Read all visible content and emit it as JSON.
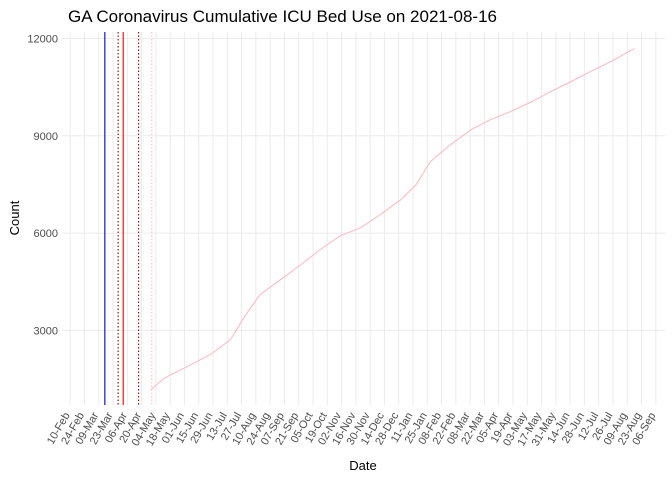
{
  "chart_data": {
    "type": "line",
    "title": "GA Coronavirus Cumulative ICU Bed Use on 2021-08-16",
    "x_label": "Date",
    "y_label": "Count",
    "series": [
      {
        "name": "ICU",
        "color": "#ffb6c1",
        "x": [
          79,
          93,
          118,
          137,
          157,
          172,
          186,
          206,
          226,
          245,
          265,
          285,
          304,
          324,
          339,
          353,
          373,
          393,
          412,
          432,
          451,
          471,
          491,
          510,
          530,
          553
        ],
        "values": [
          1170,
          1540,
          1940,
          2250,
          2710,
          3480,
          4100,
          4560,
          5020,
          5490,
          5920,
          6170,
          6570,
          7030,
          7490,
          8200,
          8730,
          9190,
          9500,
          9750,
          10030,
          10360,
          10670,
          10980,
          11290,
          11690
        ]
      }
    ],
    "vlines": [
      {
        "x": 34,
        "color": "#0000cd",
        "dash": false
      },
      {
        "x": 47,
        "color": "#8b0000",
        "dash": true
      },
      {
        "x": 52,
        "color": "#ff0000",
        "dash": false
      },
      {
        "x": 67,
        "color": "#cd0000",
        "dash": true
      },
      {
        "x": 80,
        "color": "#ffb6c1",
        "dash": true
      }
    ],
    "xlim": [
      -8,
      583
    ],
    "xticks": [
      {
        "value": 0,
        "label": "10-Feb"
      },
      {
        "value": 14,
        "label": "24-Feb"
      },
      {
        "value": 28,
        "label": "09-Mar"
      },
      {
        "value": 42,
        "label": "23-Mar"
      },
      {
        "value": 56,
        "label": "06-Apr"
      },
      {
        "value": 70,
        "label": "20-Apr"
      },
      {
        "value": 84,
        "label": "04-May"
      },
      {
        "value": 98,
        "label": "18-May"
      },
      {
        "value": 112,
        "label": "01-Jun"
      },
      {
        "value": 126,
        "label": "15-Jun"
      },
      {
        "value": 140,
        "label": "29-Jun"
      },
      {
        "value": 154,
        "label": "13-Jul"
      },
      {
        "value": 168,
        "label": "27-Jul"
      },
      {
        "value": 182,
        "label": "10-Aug"
      },
      {
        "value": 196,
        "label": "24-Aug"
      },
      {
        "value": 210,
        "label": "07-Sep"
      },
      {
        "value": 224,
        "label": "21-Sep"
      },
      {
        "value": 238,
        "label": "05-Oct"
      },
      {
        "value": 252,
        "label": "19-Oct"
      },
      {
        "value": 266,
        "label": "02-Nov"
      },
      {
        "value": 280,
        "label": "16-Nov"
      },
      {
        "value": 294,
        "label": "30-Nov"
      },
      {
        "value": 308,
        "label": "14-Dec"
      },
      {
        "value": 322,
        "label": "28-Dec"
      },
      {
        "value": 336,
        "label": "11-Jan"
      },
      {
        "value": 350,
        "label": "25-Jan"
      },
      {
        "value": 364,
        "label": "08-Feb"
      },
      {
        "value": 378,
        "label": "22-Feb"
      },
      {
        "value": 392,
        "label": "08-Mar"
      },
      {
        "value": 406,
        "label": "22-Mar"
      },
      {
        "value": 420,
        "label": "05-Apr"
      },
      {
        "value": 434,
        "label": "19-Apr"
      },
      {
        "value": 448,
        "label": "03-May"
      },
      {
        "value": 462,
        "label": "17-May"
      },
      {
        "value": 476,
        "label": "31-May"
      },
      {
        "value": 490,
        "label": "14-Jun"
      },
      {
        "value": 504,
        "label": "28-Jun"
      },
      {
        "value": 518,
        "label": "12-Jul"
      },
      {
        "value": 532,
        "label": "26-Jul"
      },
      {
        "value": 546,
        "label": "09-Aug"
      },
      {
        "value": 560,
        "label": "23-Aug"
      },
      {
        "value": 574,
        "label": "06-Sep"
      }
    ],
    "ylim": [
      700,
      12200
    ],
    "yticks": [
      3000,
      6000,
      9000,
      12000
    ],
    "grid": true
  }
}
